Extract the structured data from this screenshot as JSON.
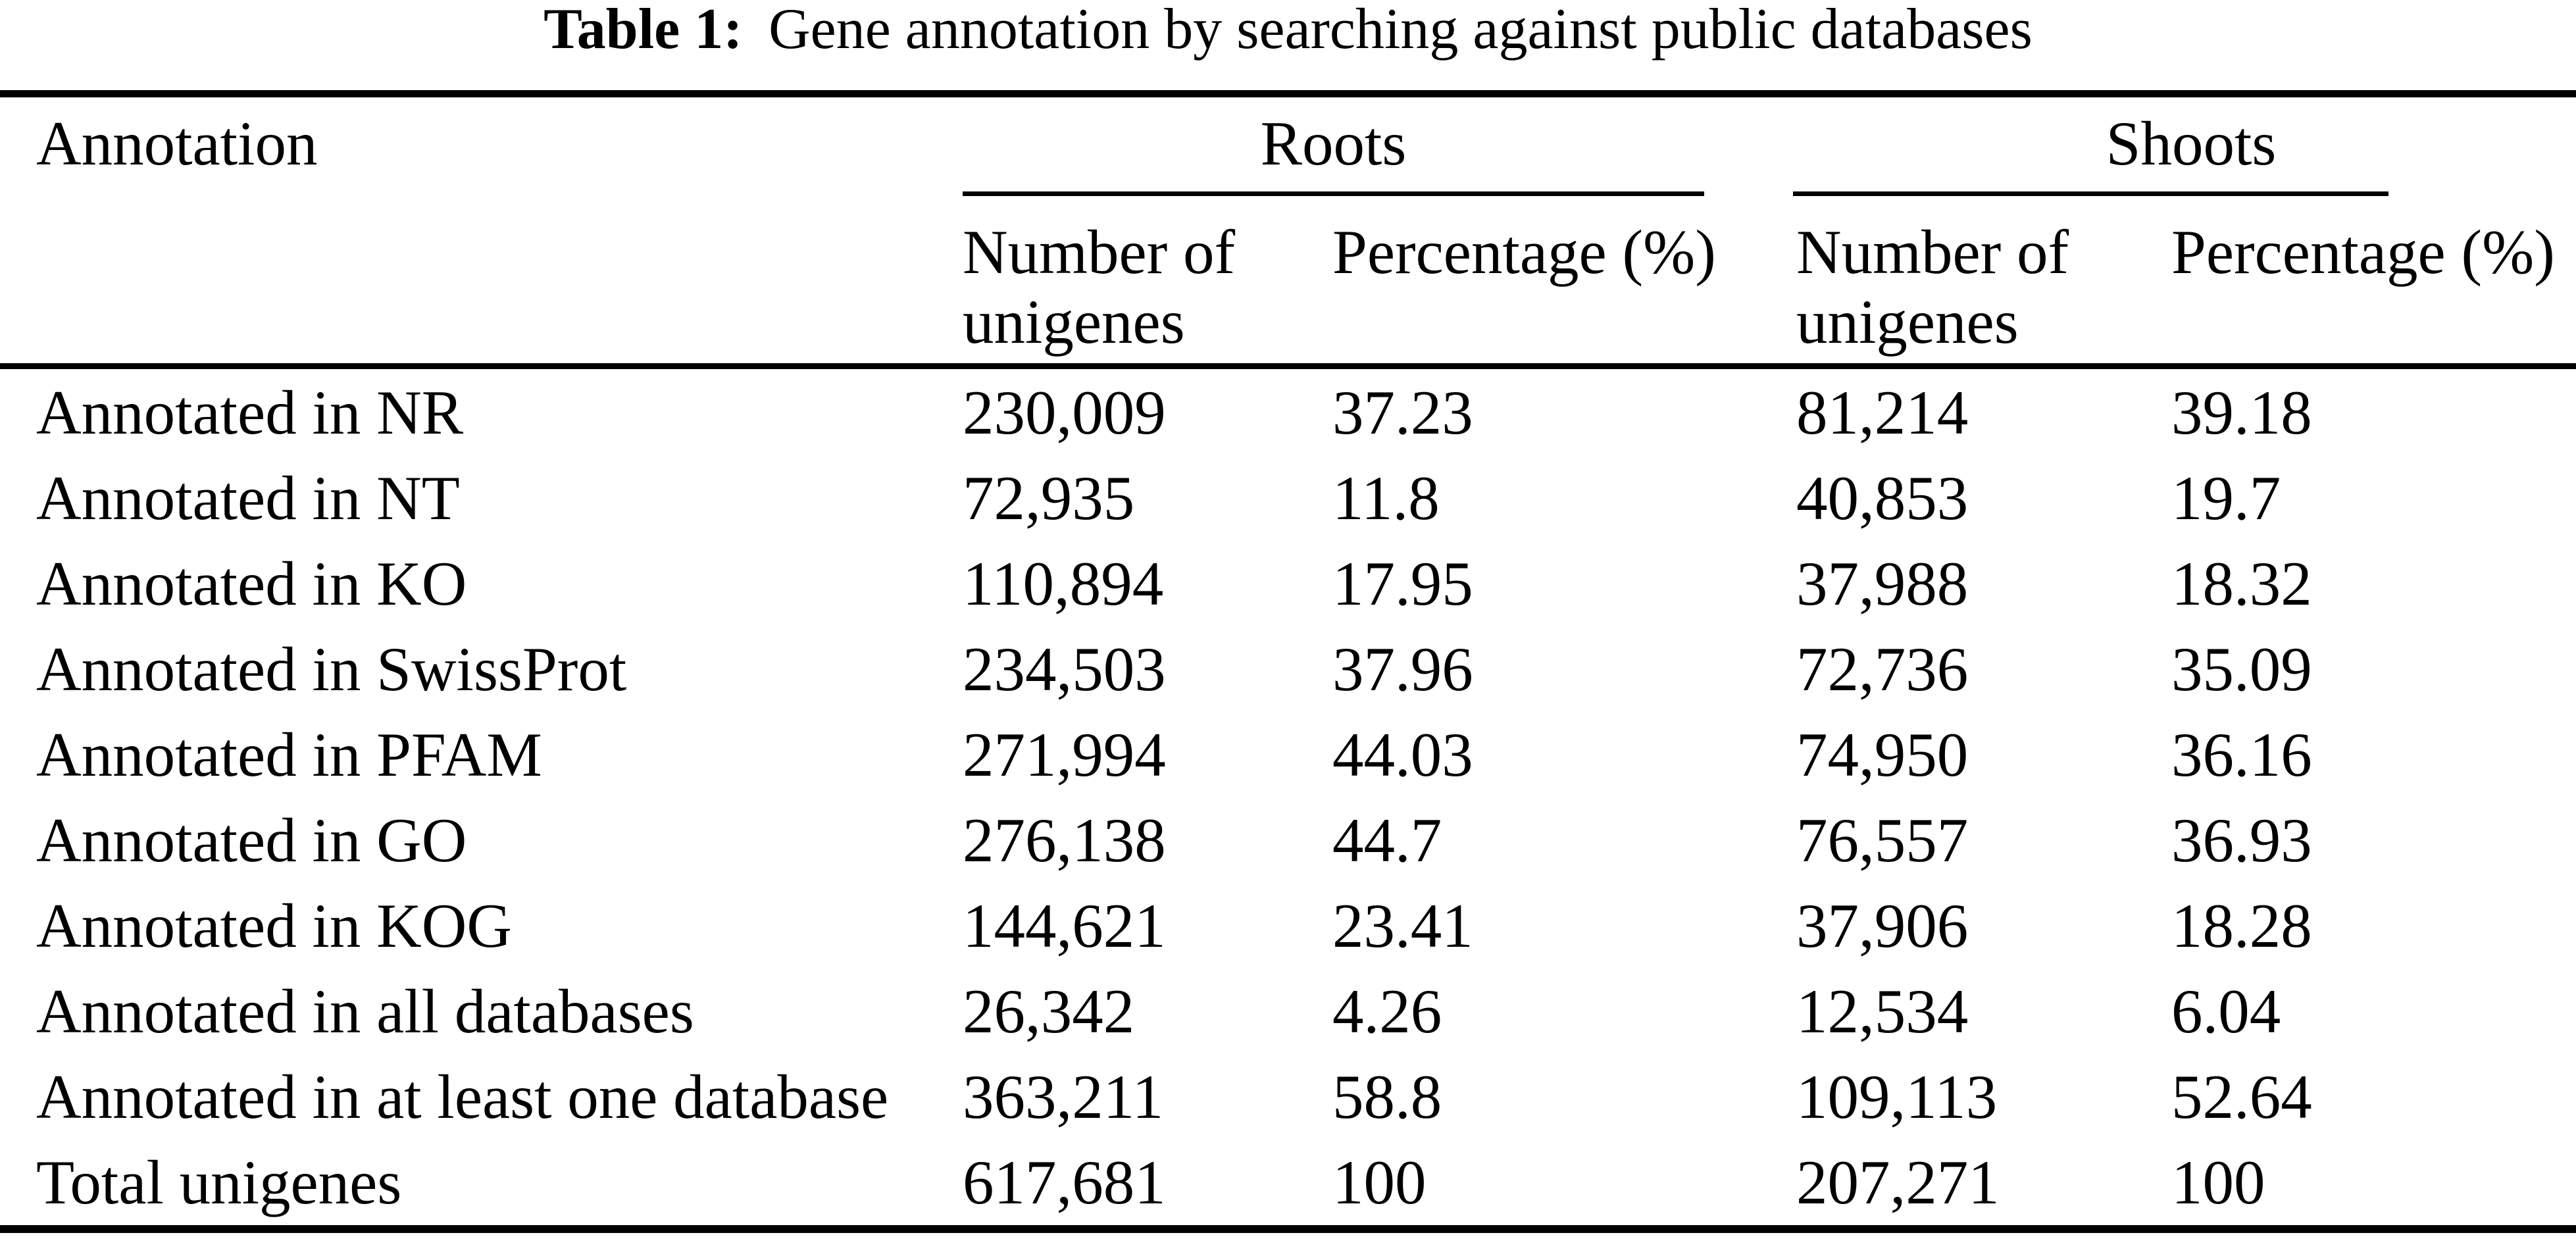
{
  "table": {
    "title_prefix": "Table 1:",
    "title": "Gene annotation by searching against public databases",
    "columns": {
      "annotation": "Annotation",
      "roots": "Roots",
      "shoots": "Shoots",
      "number": "Number of unigenes",
      "percentage": "Percentage (%)"
    },
    "rows": [
      {
        "label": "Annotated in NR",
        "roots_number": "230,009",
        "roots_pct": "37.23",
        "shoots_number": "81,214",
        "shoots_pct": "39.18"
      },
      {
        "label": "Annotated in NT",
        "roots_number": "72,935",
        "roots_pct": "11.8",
        "shoots_number": "40,853",
        "shoots_pct": "19.7"
      },
      {
        "label": "Annotated in KO",
        "roots_number": "110,894",
        "roots_pct": "17.95",
        "shoots_number": "37,988",
        "shoots_pct": "18.32"
      },
      {
        "label": "Annotated in SwissProt",
        "roots_number": "234,503",
        "roots_pct": "37.96",
        "shoots_number": "72,736",
        "shoots_pct": "35.09"
      },
      {
        "label": "Annotated in PFAM",
        "roots_number": "271,994",
        "roots_pct": "44.03",
        "shoots_number": "74,950",
        "shoots_pct": "36.16"
      },
      {
        "label": "Annotated in GO",
        "roots_number": "276,138",
        "roots_pct": "44.7",
        "shoots_number": "76,557",
        "shoots_pct": "36.93"
      },
      {
        "label": "Annotated in KOG",
        "roots_number": "144,621",
        "roots_pct": "23.41",
        "shoots_number": "37,906",
        "shoots_pct": "18.28"
      },
      {
        "label": "Annotated in all databases",
        "roots_number": "26,342",
        "roots_pct": "4.26",
        "shoots_number": "12,534",
        "shoots_pct": "6.04"
      },
      {
        "label": "Annotated in at least one database",
        "roots_number": "363,211",
        "roots_pct": "58.8",
        "shoots_number": "109,113",
        "shoots_pct": "52.64"
      },
      {
        "label": "Total unigenes",
        "roots_number": "617,681",
        "roots_pct": "100",
        "shoots_number": "207,271",
        "shoots_pct": "100"
      }
    ]
  }
}
